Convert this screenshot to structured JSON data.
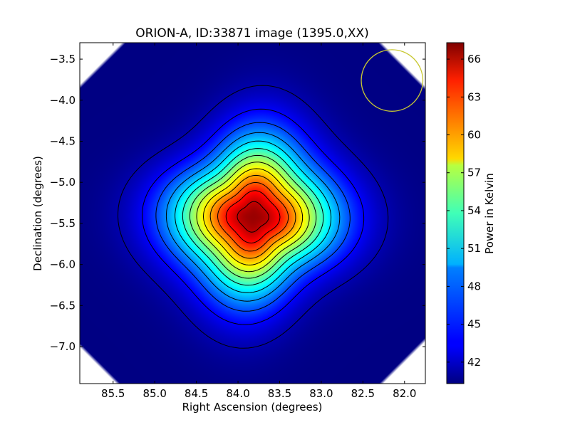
{
  "chart_data": {
    "type": "heatmap",
    "title": "ORION-A, ID:33871 image (1395.0,XX)",
    "xlabel": "Right Ascension (degrees)",
    "ylabel": "Declination (degrees)",
    "x_range": [
      85.9,
      81.75
    ],
    "y_range": [
      -7.45,
      -3.3
    ],
    "x_ticks": [
      "85.5",
      "85.0",
      "84.5",
      "84.0",
      "83.5",
      "83.0",
      "82.5",
      "82.0"
    ],
    "x_tick_values": [
      85.5,
      85.0,
      84.5,
      84.0,
      83.5,
      83.0,
      82.5,
      82.0
    ],
    "y_ticks": [
      "−3.5",
      "−4.0",
      "−4.5",
      "−5.0",
      "−5.5",
      "−6.0",
      "−6.5",
      "−7.0"
    ],
    "y_tick_values": [
      -3.5,
      -4.0,
      -4.5,
      -5.0,
      -5.5,
      -6.0,
      -6.5,
      -7.0
    ],
    "colorbar": {
      "label": "Power in Kelvin",
      "min": 40.3,
      "max": 67.3,
      "ticks": [
        "42",
        "45",
        "48",
        "51",
        "54",
        "57",
        "60",
        "63",
        "66"
      ],
      "tick_values": [
        42,
        45,
        48,
        51,
        54,
        57,
        60,
        63,
        66
      ],
      "colormap": "jet"
    },
    "source": {
      "peak_ra": 83.82,
      "peak_dec": -5.42,
      "peak_value": 66.6,
      "background_value": 40.4
    },
    "contours": {
      "color": "#000000",
      "levels": [
        41.5,
        43.5,
        45.5,
        47.5,
        49.5,
        51.5,
        53.5,
        55.5,
        57.5,
        59.5,
        61.5,
        63.5,
        65.5
      ]
    },
    "beam": {
      "ra": 82.15,
      "dec": -3.76,
      "radius_deg": 0.37,
      "color": "#c8c832"
    }
  }
}
